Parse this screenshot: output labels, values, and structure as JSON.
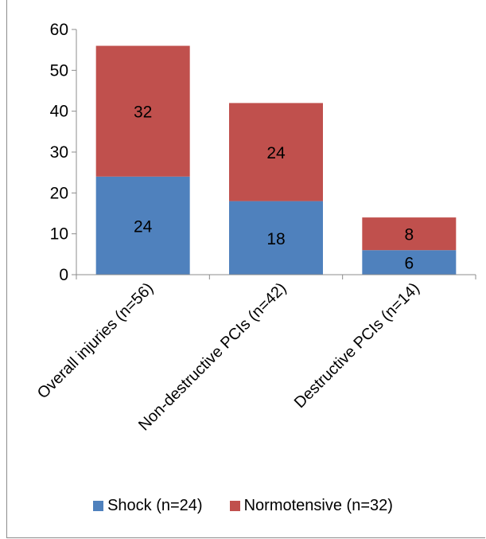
{
  "chart_data": {
    "type": "bar",
    "stacked": true,
    "title": "",
    "xlabel": "",
    "ylabel": "",
    "categories": [
      "Overall injuries (n=56)",
      "Non-destructive PCIs (n=42)",
      "Destructive PCIs (n=14)"
    ],
    "series": [
      {
        "name": "Shock (n=24)",
        "values": [
          24,
          18,
          6
        ],
        "color": "#4f81bd"
      },
      {
        "name": "Normotensive (n=32)",
        "values": [
          32,
          24,
          8
        ],
        "color": "#c0504d"
      }
    ],
    "ylim": [
      0,
      60
    ],
    "yticks": [
      0,
      10,
      20,
      30,
      40,
      50,
      60
    ],
    "grid": false,
    "data_labels": true,
    "legend_position": "bottom"
  }
}
